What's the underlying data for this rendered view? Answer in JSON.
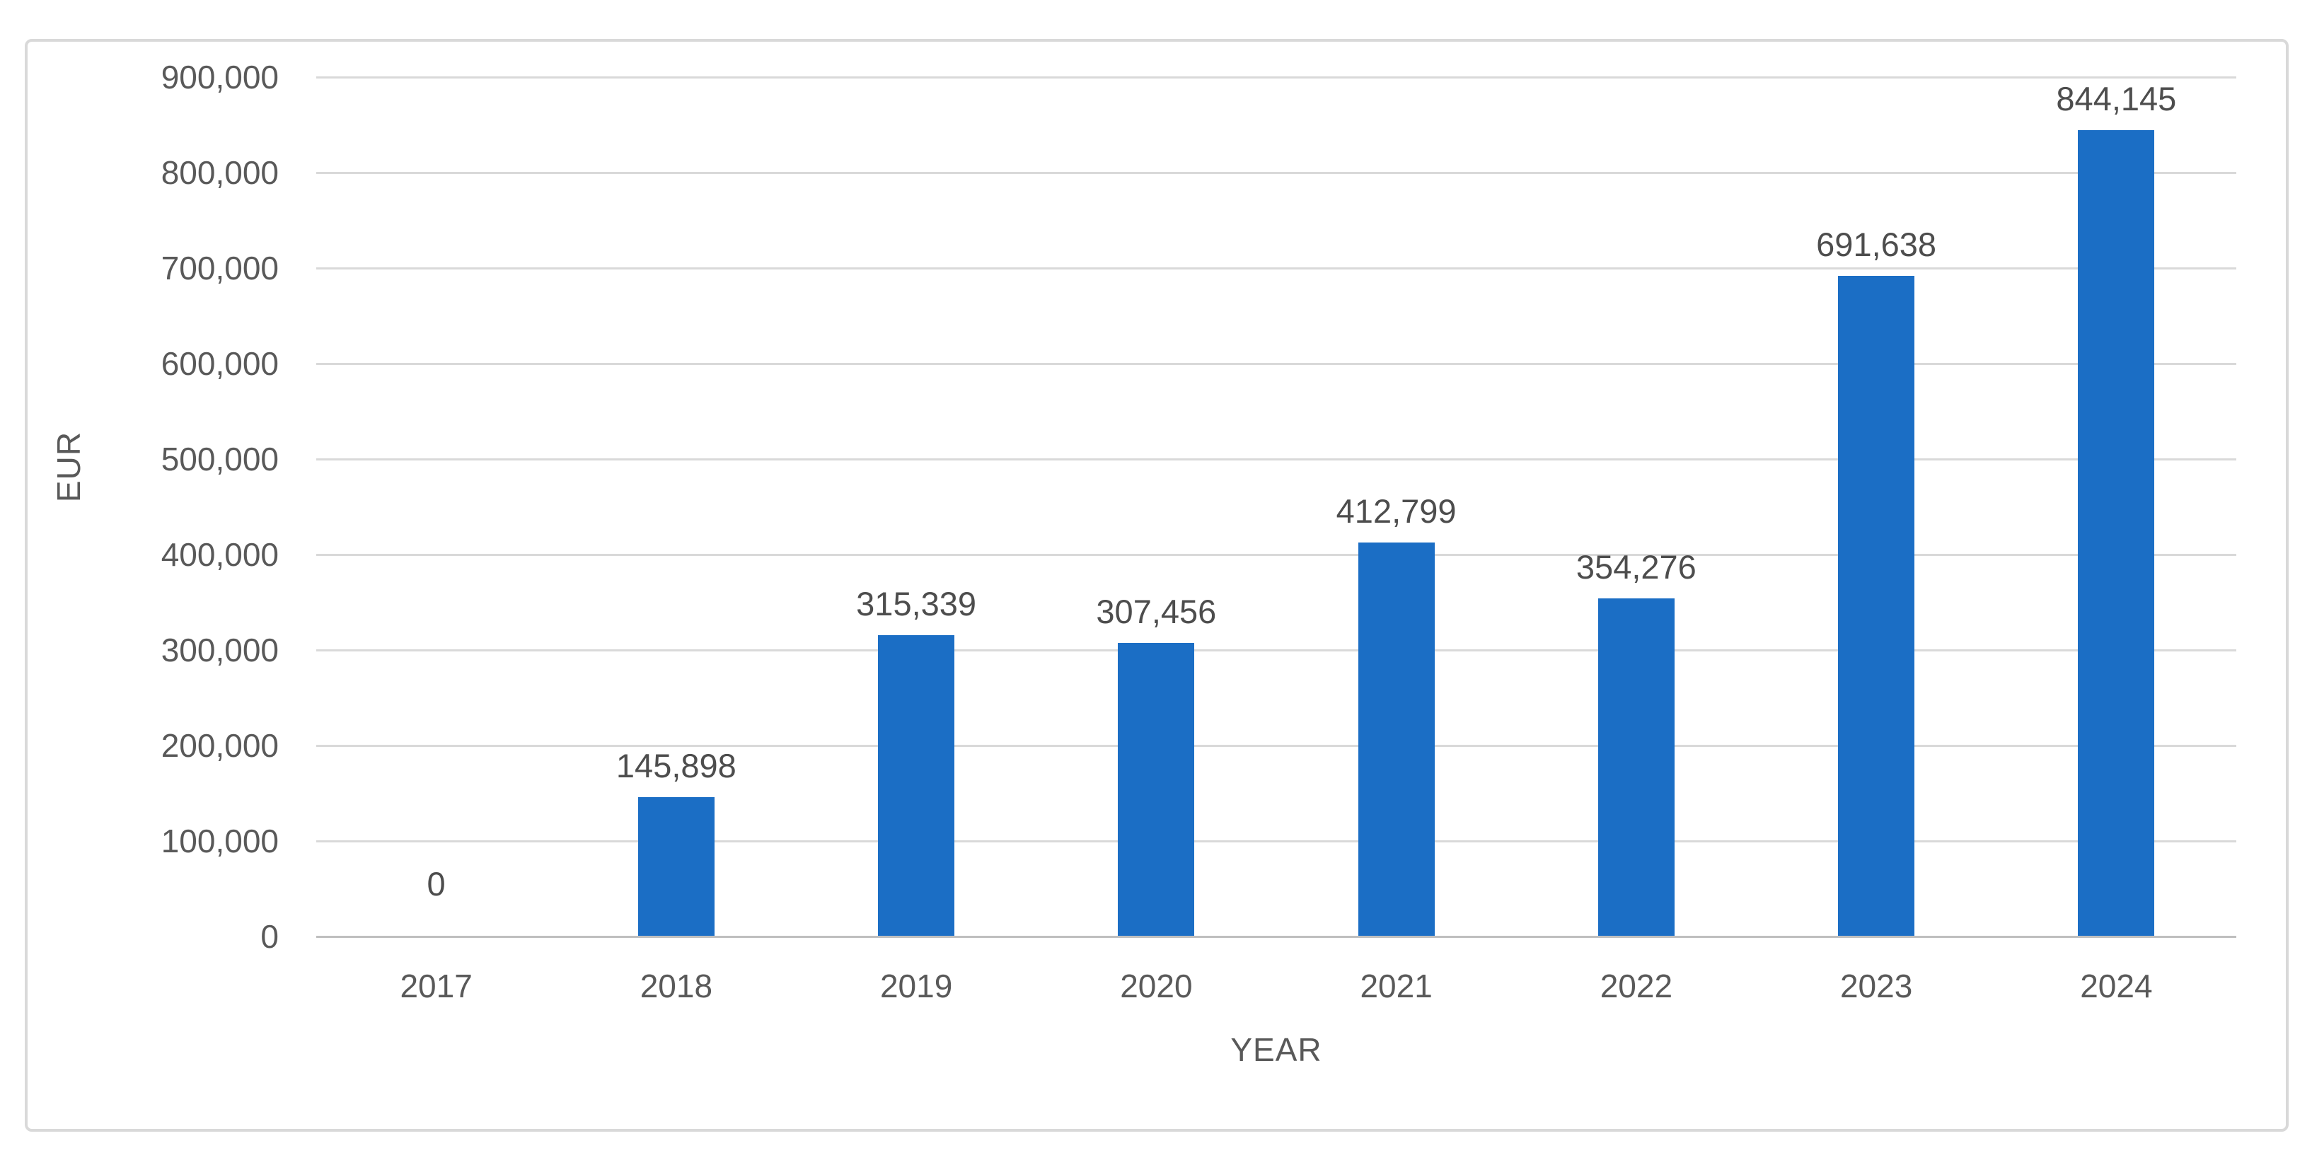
{
  "chart_data": {
    "type": "bar",
    "title": "",
    "categories": [
      "2017",
      "2018",
      "2019",
      "2020",
      "2021",
      "2022",
      "2023",
      "2024"
    ],
    "values": [
      0,
      145898,
      315339,
      307456,
      412799,
      354276,
      691638,
      844145
    ],
    "data_labels": [
      "0",
      "145,898",
      "315,339",
      "307,456",
      "412,799",
      "354,276",
      "691,638",
      "844,145"
    ],
    "xlabel": "YEAR",
    "ylabel": "EUR",
    "ylim": [
      0,
      900000
    ],
    "ytick_step": 100000,
    "ytick_labels": [
      "0",
      "100,000",
      "200,000",
      "300,000",
      "400,000",
      "500,000",
      "600,000",
      "700,000",
      "800,000",
      "900,000"
    ],
    "grid": true,
    "legend": false,
    "colors": {
      "bar": "#1b6ec5",
      "gridline": "#d9d9d9",
      "axis_line": "#bfbfbf",
      "tick_text": "#595959",
      "data_label_text": "#4d4d4d",
      "frame_border": "#d9d9d9",
      "background": "#ffffff"
    }
  }
}
